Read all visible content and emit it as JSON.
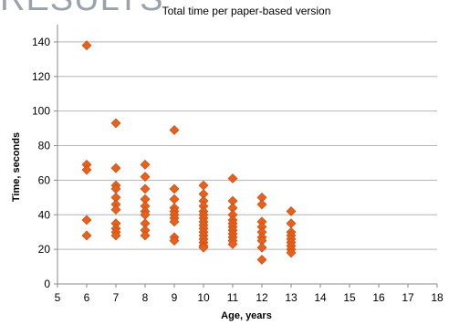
{
  "slide": {
    "header_fragment": "RESULTS"
  },
  "chart_data": {
    "type": "scatter",
    "title": "Total time per paper-based version",
    "xlabel": "Age, years",
    "ylabel": "Time, seconds",
    "xlim": [
      5,
      18
    ],
    "ylim": [
      0,
      150
    ],
    "x_ticks": [
      5,
      6,
      7,
      8,
      9,
      10,
      11,
      12,
      13,
      14,
      15,
      16,
      17,
      18
    ],
    "y_ticks": [
      0,
      20,
      40,
      60,
      80,
      100,
      120,
      140
    ],
    "grid": "horizontal",
    "legend": "none",
    "marker_color": "#e8601c",
    "series": [
      {
        "points": [
          [
            6,
            138
          ],
          [
            6,
            69
          ],
          [
            6,
            66
          ],
          [
            6,
            37
          ],
          [
            6,
            28
          ],
          [
            7,
            93
          ],
          [
            7,
            67
          ],
          [
            7,
            57
          ],
          [
            7,
            55
          ],
          [
            7,
            50
          ],
          [
            7,
            46
          ],
          [
            7,
            43
          ],
          [
            7,
            35
          ],
          [
            7,
            32
          ],
          [
            7,
            30
          ],
          [
            7,
            28
          ],
          [
            8,
            69
          ],
          [
            8,
            62
          ],
          [
            8,
            55
          ],
          [
            8,
            49
          ],
          [
            8,
            45
          ],
          [
            8,
            42
          ],
          [
            8,
            40
          ],
          [
            8,
            35
          ],
          [
            8,
            31
          ],
          [
            8,
            28
          ],
          [
            9,
            89
          ],
          [
            9,
            55
          ],
          [
            9,
            49
          ],
          [
            9,
            44
          ],
          [
            9,
            42
          ],
          [
            9,
            40
          ],
          [
            9,
            38
          ],
          [
            9,
            36
          ],
          [
            9,
            27
          ],
          [
            9,
            25
          ],
          [
            10,
            57
          ],
          [
            10,
            52
          ],
          [
            10,
            48
          ],
          [
            10,
            45
          ],
          [
            10,
            42
          ],
          [
            10,
            40
          ],
          [
            10,
            38
          ],
          [
            10,
            36
          ],
          [
            10,
            34
          ],
          [
            10,
            32
          ],
          [
            10,
            30
          ],
          [
            10,
            28
          ],
          [
            10,
            26
          ],
          [
            10,
            24
          ],
          [
            10,
            22
          ],
          [
            10,
            21
          ],
          [
            11,
            61
          ],
          [
            11,
            48
          ],
          [
            11,
            44
          ],
          [
            11,
            40
          ],
          [
            11,
            37
          ],
          [
            11,
            35
          ],
          [
            11,
            33
          ],
          [
            11,
            31
          ],
          [
            11,
            29
          ],
          [
            11,
            27
          ],
          [
            11,
            25
          ],
          [
            11,
            23
          ],
          [
            12,
            50
          ],
          [
            12,
            46
          ],
          [
            12,
            36
          ],
          [
            12,
            33
          ],
          [
            12,
            30
          ],
          [
            12,
            27
          ],
          [
            12,
            25
          ],
          [
            12,
            21
          ],
          [
            12,
            14
          ],
          [
            13,
            42
          ],
          [
            13,
            35
          ],
          [
            13,
            30
          ],
          [
            13,
            28
          ],
          [
            13,
            26
          ],
          [
            13,
            24
          ],
          [
            13,
            22
          ],
          [
            13,
            20
          ],
          [
            13,
            18
          ]
        ]
      }
    ]
  }
}
